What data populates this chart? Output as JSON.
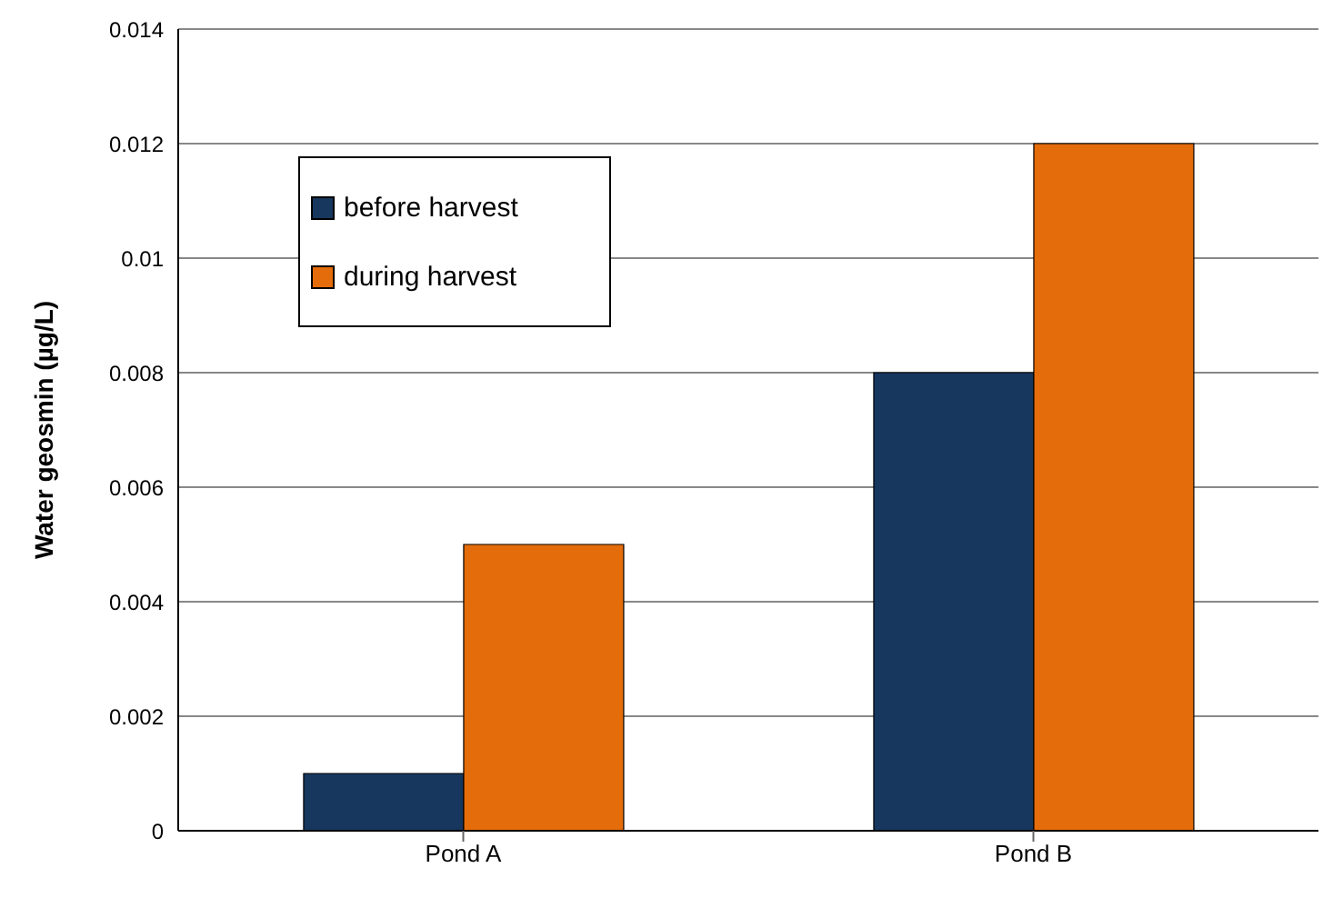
{
  "chart_data": {
    "type": "bar",
    "ylabel": "Water geosmin (µg/L)",
    "categories": [
      "Pond A",
      "Pond B"
    ],
    "series": [
      {
        "name": "before harvest",
        "color": "#17375e",
        "values": [
          0.001,
          0.008
        ]
      },
      {
        "name": "during harvest",
        "color": "#e46c0a",
        "values": [
          0.005,
          0.012
        ]
      }
    ],
    "ylim": [
      0,
      0.014
    ],
    "yticks": [
      0,
      0.002,
      0.004,
      0.006,
      0.008,
      0.01,
      0.012,
      0.014
    ],
    "grid": "y",
    "legend": "top left"
  }
}
